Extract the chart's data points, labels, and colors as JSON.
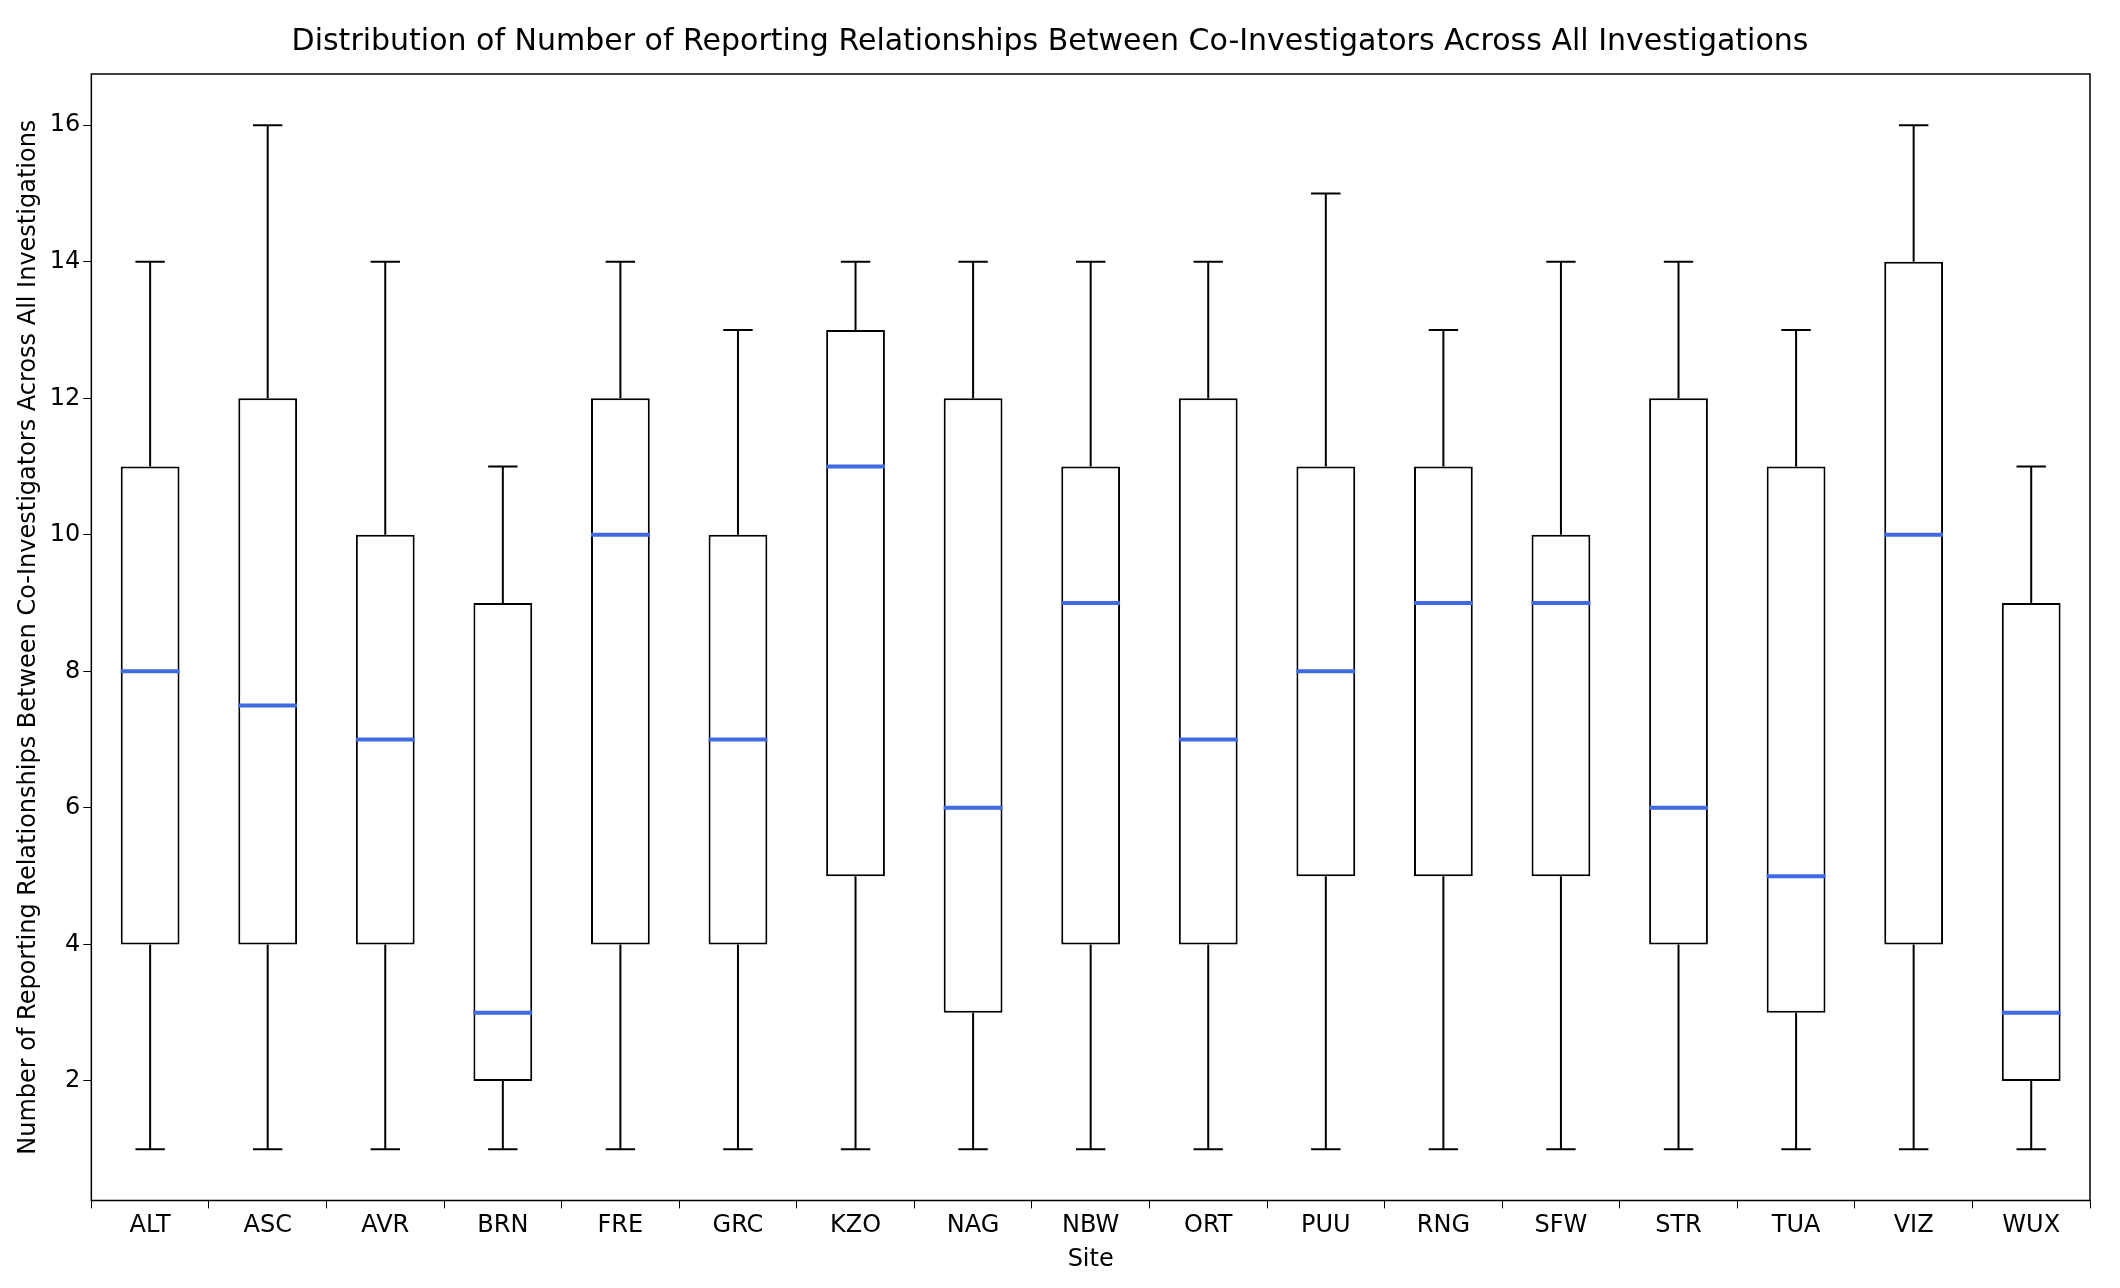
{
  "chart_data": {
    "type": "box",
    "title": "Distribution of Number of Reporting Relationships Between Co-Investigators Across All Investigations",
    "xlabel": "Site",
    "ylabel": "Number of Reporting Relationships Between Co-Investigators Across All Investigations",
    "categories": [
      "ALT",
      "ASC",
      "AVR",
      "BRN",
      "FRE",
      "GRC",
      "KZO",
      "NAG",
      "NBW",
      "ORT",
      "PUU",
      "RNG",
      "SFW",
      "STR",
      "TUA",
      "VIZ",
      "WUX"
    ],
    "color": "#000000",
    "boxes": [
      {
        "low": 1,
        "q1": 4,
        "median": 8,
        "q3": 11,
        "high": 14
      },
      {
        "low": 1,
        "q1": 4,
        "median": 7.5,
        "q3": 12,
        "high": 16
      },
      {
        "low": 1,
        "q1": 4,
        "median": 7,
        "q3": 10,
        "high": 14
      },
      {
        "low": 1,
        "q1": 2,
        "median": 3,
        "q3": 9,
        "high": 11
      },
      {
        "low": 1,
        "q1": 4,
        "median": 10,
        "q3": 12,
        "high": 14
      },
      {
        "low": 1,
        "q1": 4,
        "median": 7,
        "q3": 10,
        "high": 13
      },
      {
        "low": 1,
        "q1": 5,
        "median": 11,
        "q3": 13,
        "high": 14
      },
      {
        "low": 1,
        "q1": 3,
        "median": 6,
        "q3": 12,
        "high": 14
      },
      {
        "low": 1,
        "q1": 4,
        "median": 9,
        "q3": 11,
        "high": 14
      },
      {
        "low": 1,
        "q1": 4,
        "median": 7,
        "q3": 12,
        "high": 14
      },
      {
        "low": 1,
        "q1": 5,
        "median": 8,
        "q3": 11,
        "high": 15
      },
      {
        "low": 1,
        "q1": 5,
        "median": 9,
        "q3": 11,
        "high": 13
      },
      {
        "low": 1,
        "q1": 5,
        "median": 9,
        "q3": 10,
        "high": 14
      },
      {
        "low": 1,
        "q1": 4,
        "median": 6,
        "q3": 12,
        "high": 14
      },
      {
        "low": 1,
        "q1": 3,
        "median": 5,
        "q3": 11,
        "high": 13
      },
      {
        "low": 1,
        "q1": 4,
        "median": 10,
        "q3": 14,
        "high": 16
      },
      {
        "low": 1,
        "q1": 2,
        "median": 3,
        "q3": 9,
        "high": 11
      }
    ],
    "ylim": [
      0.25,
      16.75
    ],
    "yticks": [
      2,
      4,
      6,
      8,
      10,
      12,
      14,
      16
    ]
  }
}
